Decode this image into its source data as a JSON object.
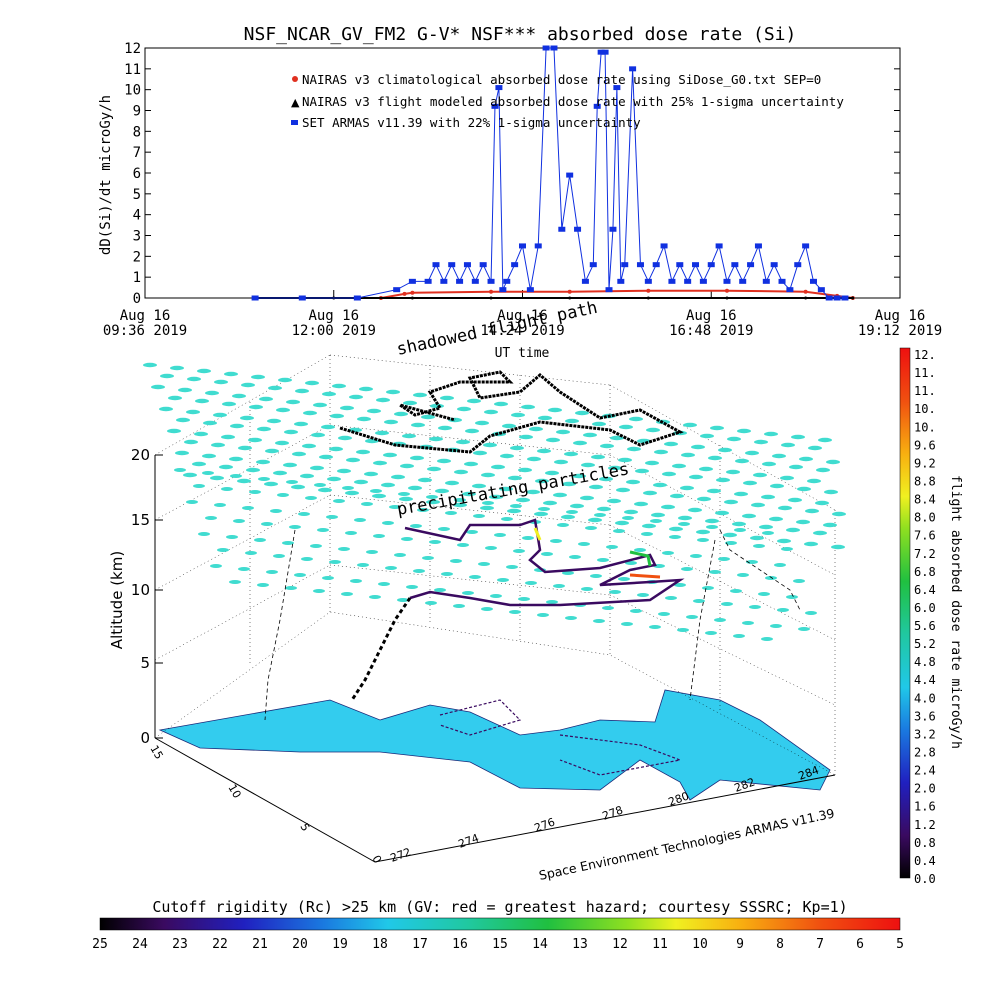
{
  "title": "NSF_NCAR_GV_FM2 G-V* NSF*** absorbed dose rate (Si)",
  "top_plot": {
    "ylabel": "dD(Si)/dt microGy/h",
    "xlabel": "UT time",
    "ylim": [
      0,
      12
    ],
    "yticks": [
      "0",
      "1",
      "2",
      "3",
      "4",
      "5",
      "6",
      "7",
      "8",
      "9",
      "10",
      "11",
      "12"
    ],
    "xticks": [
      {
        "line1": "Aug 16",
        "line2": "09:36 2019"
      },
      {
        "line1": "Aug 16",
        "line2": "12:00 2019"
      },
      {
        "line1": "Aug 16",
        "line2": "14:24 2019"
      },
      {
        "line1": "Aug 16",
        "line2": "16:48 2019"
      },
      {
        "line1": "Aug 16",
        "line2": "19:12 2019"
      }
    ],
    "legend": [
      "NAIRAS v3 climatological absorbed dose rate using SiDose_G0.txt SEP=0",
      "NAIRAS v3 flight modeled absorbed dose rate with 25% 1-sigma uncertainty",
      "SET ARMAS v11.39 with 22% 1-sigma uncertainty"
    ]
  },
  "chart_data": [
    {
      "type": "line",
      "x_unit": "UT hours, Aug 16 2019",
      "xlim": [
        9.6,
        19.2
      ],
      "ylim": [
        0,
        12
      ],
      "series": [
        {
          "name": "SET ARMAS v11.39 with 22% 1-sigma uncertainty",
          "color": "#1030e0",
          "x": [
            11.0,
            11.6,
            12.3,
            12.8,
            13.0,
            13.2,
            13.3,
            13.4,
            13.5,
            13.6,
            13.7,
            13.8,
            13.9,
            14.0,
            14.05,
            14.1,
            14.15,
            14.2,
            14.3,
            14.4,
            14.5,
            14.6,
            14.7,
            14.8,
            14.9,
            15.0,
            15.1,
            15.2,
            15.3,
            15.35,
            15.4,
            15.45,
            15.5,
            15.55,
            15.6,
            15.65,
            15.7,
            15.8,
            15.9,
            16.0,
            16.1,
            16.2,
            16.3,
            16.4,
            16.5,
            16.6,
            16.7,
            16.8,
            16.9,
            17.0,
            17.1,
            17.2,
            17.3,
            17.4,
            17.5,
            17.6,
            17.7,
            17.8,
            17.9,
            18.0,
            18.1,
            18.2,
            18.3,
            18.4,
            18.5
          ],
          "y": [
            0,
            0,
            0,
            0.4,
            0.8,
            0.8,
            1.6,
            0.8,
            1.6,
            0.8,
            1.6,
            0.8,
            1.6,
            0.8,
            9.2,
            10.1,
            0.4,
            0.8,
            1.6,
            2.5,
            0.4,
            2.5,
            12,
            12,
            3.3,
            5.9,
            3.3,
            0.8,
            1.6,
            9.2,
            11.8,
            11.8,
            0.4,
            3.3,
            10.1,
            0.8,
            1.6,
            11,
            1.6,
            0.8,
            1.6,
            2.5,
            0.8,
            1.6,
            0.8,
            1.6,
            0.8,
            1.6,
            2.5,
            0.8,
            1.6,
            0.8,
            1.6,
            2.5,
            0.8,
            1.6,
            0.8,
            0.4,
            1.6,
            2.5,
            0.8,
            0.4,
            0,
            0,
            0
          ]
        },
        {
          "name": "NAIRAS v3 flight modeled absorbed dose rate with 25% 1-sigma uncertainty",
          "color": "#000000",
          "x": [
            11.0,
            12.0,
            13.0,
            14.0,
            15.0,
            16.0,
            17.0,
            18.0,
            18.6
          ],
          "y": [
            0,
            0,
            0,
            0,
            0,
            0,
            0,
            0,
            0
          ]
        },
        {
          "name": "NAIRAS v3 climatological absorbed dose rate using SiDose_G0.txt SEP=0",
          "color": "#e03020",
          "x": [
            11.0,
            12.6,
            12.9,
            13.0,
            14.0,
            15.0,
            16.0,
            17.0,
            18.0,
            18.4,
            18.6
          ],
          "y": [
            0,
            0,
            0.2,
            0.25,
            0.3,
            0.3,
            0.35,
            0.35,
            0.3,
            0.1,
            0
          ]
        }
      ]
    }
  ],
  "scene3d": {
    "label_shadowed": "shadowed flight path",
    "label_precip": "precipitating particles",
    "zlabel": "Altitude (km)",
    "zticks": [
      "0",
      "5",
      "10",
      "15",
      "20"
    ],
    "lat_ticks": [
      "15",
      "10",
      "5",
      "0"
    ],
    "lon_ticks": [
      "272",
      "274",
      "276",
      "278",
      "280",
      "282",
      "284"
    ],
    "credit": "Space Environment Technologies ARMAS v11.39"
  },
  "colorbar_right": {
    "label": "flight absorbed dose rate microGy/h",
    "ticks": [
      "12.",
      "11.",
      "11.",
      "10.",
      "10.",
      "9.6",
      "9.2",
      "8.8",
      "8.4",
      "8.0",
      "7.6",
      "7.2",
      "6.8",
      "6.4",
      "6.0",
      "5.6",
      "5.2",
      "4.8",
      "4.4",
      "4.0",
      "3.6",
      "3.2",
      "2.8",
      "2.4",
      "2.0",
      "1.6",
      "1.2",
      "0.8",
      "0.4",
      "0.0"
    ]
  },
  "colorbar_bottom": {
    "label": "Cutoff rigidity (Rc) >25 km (GV: red = greatest hazard; courtesy SSSRC; Kp=1)",
    "ticks": [
      "25",
      "24",
      "23",
      "22",
      "21",
      "20",
      "19",
      "18",
      "17",
      "16",
      "15",
      "14",
      "13",
      "12",
      "11",
      "10",
      "9",
      "8",
      "7",
      "6",
      "5"
    ]
  },
  "colors": {
    "armas": "#1030e0",
    "climatological": "#e03020",
    "land": "#33ccee",
    "precip": "#40dcd0"
  }
}
